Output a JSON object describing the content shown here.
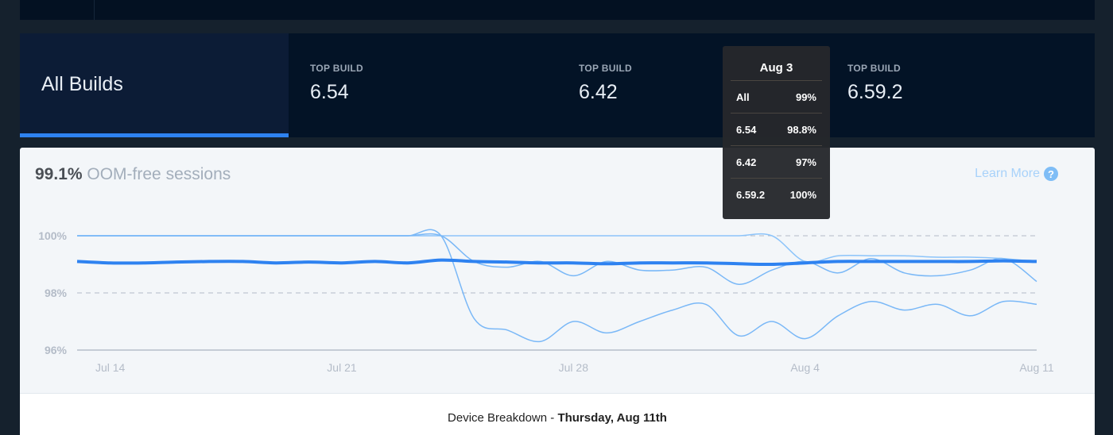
{
  "tabs": [
    {
      "label": "",
      "value": "All Builds",
      "active": true
    },
    {
      "label": "TOP BUILD",
      "value": "6.54"
    },
    {
      "label": "TOP BUILD",
      "value": "6.42"
    },
    {
      "label": "TOP BUILD",
      "value": "6.59.2"
    }
  ],
  "card": {
    "headline_value": "99.1%",
    "headline_label": "OOM-free sessions",
    "learn_more": "Learn More",
    "help_icon": "?"
  },
  "tooltip": {
    "title": "Aug 3",
    "rows": [
      {
        "name": "All",
        "value": "99%"
      },
      {
        "name": "6.54",
        "value": "98.8%"
      },
      {
        "name": "6.42",
        "value": "97%"
      },
      {
        "name": "6.59.2",
        "value": "100%"
      }
    ]
  },
  "footer": {
    "label": "Device Breakdown - ",
    "date": "Thursday, Aug 11th"
  },
  "chart_data": {
    "type": "line",
    "x": [
      "Jul 13",
      "Jul 14",
      "Jul 15",
      "Jul 16",
      "Jul 17",
      "Jul 18",
      "Jul 19",
      "Jul 20",
      "Jul 21",
      "Jul 22",
      "Jul 23",
      "Jul 24",
      "Jul 25",
      "Jul 26",
      "Jul 27",
      "Jul 28",
      "Jul 29",
      "Jul 30",
      "Jul 31",
      "Aug 1",
      "Aug 2",
      "Aug 3",
      "Aug 4",
      "Aug 5",
      "Aug 6",
      "Aug 7",
      "Aug 8",
      "Aug 9",
      "Aug 10",
      "Aug 11"
    ],
    "xticks": [
      "Jul 14",
      "Jul 21",
      "Jul 28",
      "Aug 4",
      "Aug 11"
    ],
    "yticks": [
      "96%",
      "98%",
      "100%"
    ],
    "ylim": [
      96,
      100
    ],
    "series": [
      {
        "name": "6.59.2",
        "color": "#8cc4fa",
        "values": [
          100,
          100,
          100,
          100,
          100,
          100,
          100,
          100,
          100,
          100,
          100,
          100,
          100,
          100,
          100,
          100,
          100,
          100,
          100,
          100,
          100,
          100,
          99.1,
          99.3,
          99.3,
          99.3,
          99.25,
          99.25,
          99.2,
          99.1
        ]
      },
      {
        "name": "6.54",
        "color": "#7ab8f7",
        "values": [
          100,
          100,
          100,
          100,
          100,
          100,
          100,
          100,
          100,
          100,
          100,
          100,
          99.1,
          98.9,
          99.1,
          98.6,
          99.1,
          98.8,
          98.8,
          98.9,
          98.3,
          98.8,
          99.1,
          98.7,
          99.2,
          98.7,
          98.6,
          98.8,
          99.2,
          98.4
        ]
      },
      {
        "name": "6.42",
        "color": "#7ab8f7",
        "values": [
          100,
          100,
          100,
          100,
          100,
          100,
          100,
          100,
          100,
          100,
          100,
          100,
          97.1,
          96.7,
          96.3,
          97.0,
          96.6,
          97.0,
          97.4,
          97.6,
          96.5,
          97.0,
          96.4,
          97.2,
          97.7,
          97.4,
          97.6,
          97.2,
          97.7,
          97.6
        ]
      },
      {
        "name": "All",
        "color": "#2e82f0",
        "values": [
          99.1,
          99.05,
          99.05,
          99.08,
          99.1,
          99.1,
          99.05,
          99.08,
          99.05,
          99.1,
          99.05,
          99.15,
          99.1,
          99.08,
          99.05,
          99.05,
          99.02,
          99.05,
          99.05,
          99.05,
          99.02,
          99.0,
          99.05,
          99.1,
          99.1,
          99.1,
          99.1,
          99.1,
          99.12,
          99.1
        ]
      }
    ]
  }
}
